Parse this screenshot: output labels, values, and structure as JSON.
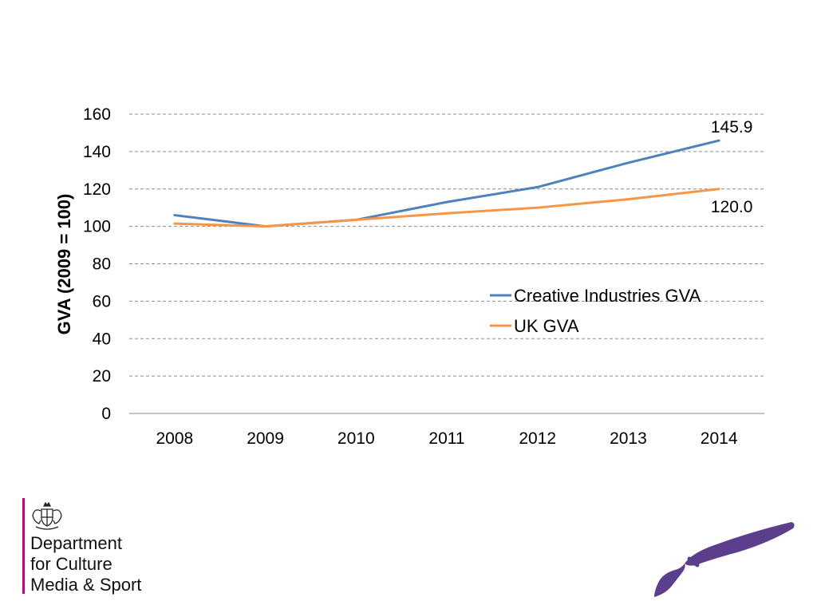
{
  "chart_data": {
    "type": "line",
    "categories": [
      "2008",
      "2009",
      "2010",
      "2011",
      "2012",
      "2013",
      "2014"
    ],
    "series": [
      {
        "name": "Creative Industries GVA",
        "color": "#4f81bd",
        "values": [
          106.0,
          100.0,
          103.5,
          113.0,
          121.0,
          134.0,
          145.9
        ]
      },
      {
        "name": "UK GVA",
        "color": "#f79646",
        "values": [
          101.5,
          100.0,
          103.5,
          107.0,
          110.0,
          114.5,
          120.0
        ]
      }
    ],
    "data_labels": [
      {
        "series": 0,
        "index": 6,
        "text": "145.9"
      },
      {
        "series": 1,
        "index": 6,
        "text": "120.0"
      }
    ],
    "ylabel": "GVA (2009 = 100)",
    "xlabel": "",
    "ylim": [
      0,
      160
    ],
    "yticks": [
      0,
      20,
      40,
      60,
      80,
      100,
      120,
      140,
      160
    ],
    "grid": true,
    "legend_position": "right"
  },
  "logo": {
    "lines": [
      "Department",
      "for Culture",
      "Media & Sport"
    ],
    "accent_color": "#c0057a",
    "crest_icon": "royal-coat-of-arms-icon"
  },
  "decoration": {
    "icon": "paintbrush-icon",
    "color": "#5b3f8c"
  }
}
